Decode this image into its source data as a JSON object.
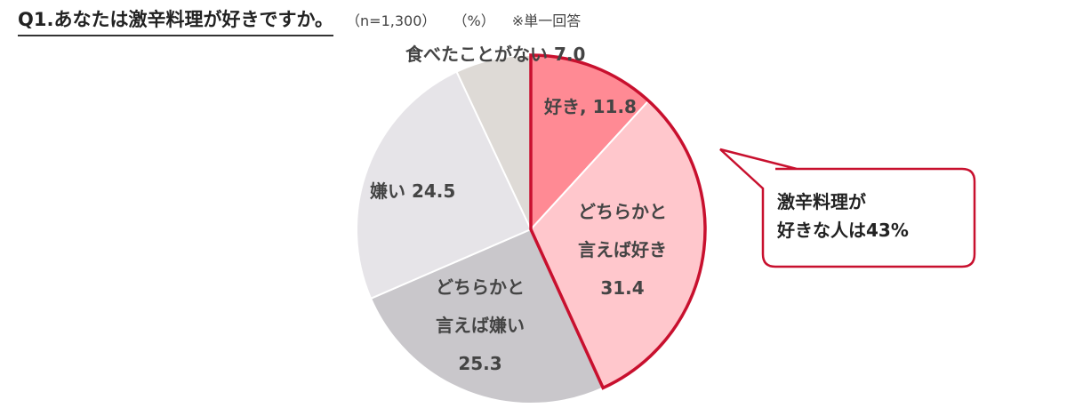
{
  "header": {
    "title": "Q1.あなたは激辛料理が好きですか。",
    "sample": "（n=1,300）",
    "unit": "（%）",
    "note": "※単一回答"
  },
  "chart_data": {
    "type": "pie",
    "start_angle_deg": 0,
    "direction": "clockwise",
    "slices": [
      {
        "label_lines": [
          "好き, 11.8"
        ],
        "value": 11.8,
        "color": "#ff8a94",
        "highlight": true
      },
      {
        "label_lines": [
          "どちらかと",
          "言えば好き",
          "31.4"
        ],
        "value": 31.4,
        "color": "#ffc7cc",
        "highlight": true
      },
      {
        "label_lines": [
          "どちらかと",
          "言えば嫌い",
          "25.3"
        ],
        "value": 25.3,
        "color": "#c9c7cb",
        "highlight": false
      },
      {
        "label_lines": [
          "嫌い 24.5"
        ],
        "value": 24.5,
        "color": "#e6e4e8",
        "highlight": false
      },
      {
        "label_lines": [
          "食べたことがない 7.0"
        ],
        "value": 7.0,
        "color": "#dedad6",
        "highlight": false
      }
    ],
    "highlight_border_color": "#c8102e"
  },
  "callout": {
    "lines": [
      "激辛料理が",
      "好きな人は43%"
    ],
    "border_color": "#c8102e"
  }
}
